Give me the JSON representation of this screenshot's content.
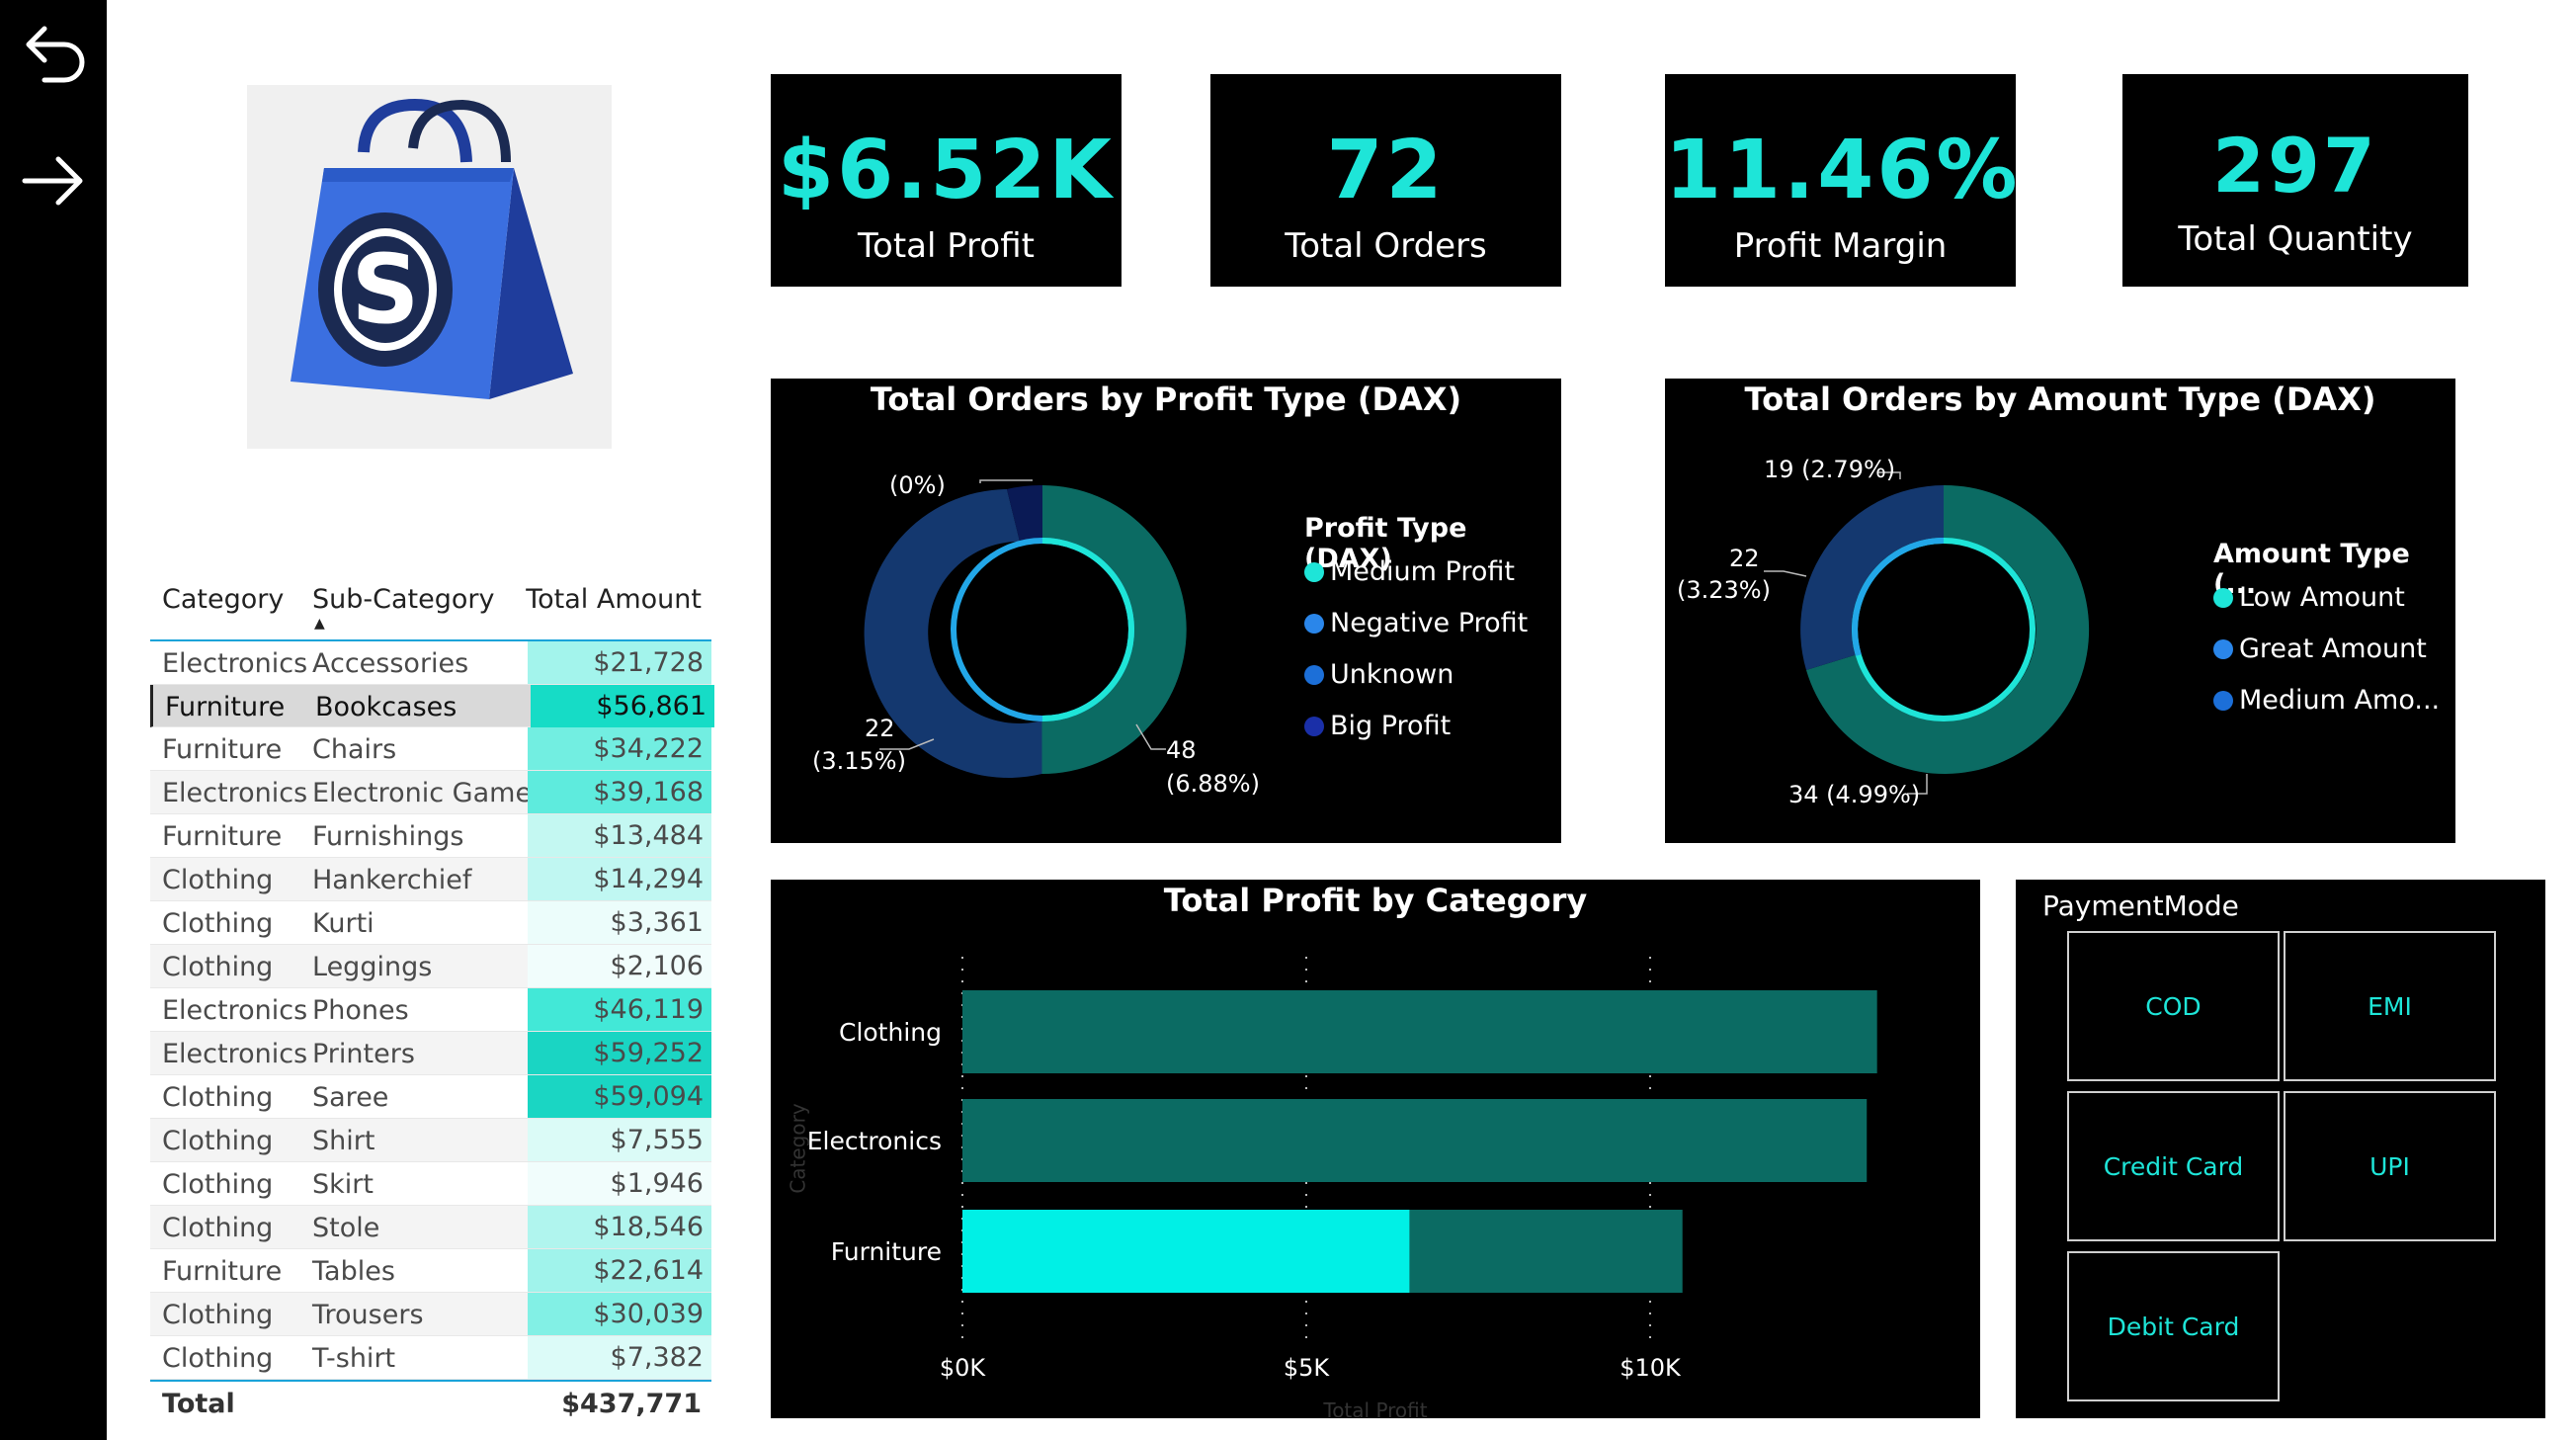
{
  "nav": {
    "back_icon": "back-arrow-icon",
    "forward_icon": "forward-arrow-icon"
  },
  "logo": {
    "letter": "S",
    "colors": {
      "bag": "#3b6fe0",
      "bag_dark": "#1f3d9c",
      "circle": "#1b2a52"
    }
  },
  "kpis": [
    {
      "value": "$6.52K",
      "label": "Total Profit"
    },
    {
      "value": "72",
      "label": "Total Orders"
    },
    {
      "value": "11.46%",
      "label": "Profit Margin"
    },
    {
      "value": "297",
      "label": "Total Quantity"
    }
  ],
  "table": {
    "headers": [
      "Category",
      "Sub-Category",
      "Total Amount"
    ],
    "sort_indicator": "▲",
    "rows": [
      [
        "Electronics",
        "Accessories",
        "$21,728"
      ],
      [
        "Furniture",
        "Bookcases",
        "$56,861"
      ],
      [
        "Furniture",
        "Chairs",
        "$34,222"
      ],
      [
        "Electronics",
        "Electronic Games",
        "$39,168"
      ],
      [
        "Furniture",
        "Furnishings",
        "$13,484"
      ],
      [
        "Clothing",
        "Hankerchief",
        "$14,294"
      ],
      [
        "Clothing",
        "Kurti",
        "$3,361"
      ],
      [
        "Clothing",
        "Leggings",
        "$2,106"
      ],
      [
        "Electronics",
        "Phones",
        "$46,119"
      ],
      [
        "Electronics",
        "Printers",
        "$59,252"
      ],
      [
        "Clothing",
        "Saree",
        "$59,094"
      ],
      [
        "Clothing",
        "Shirt",
        "$7,555"
      ],
      [
        "Clothing",
        "Skirt",
        "$1,946"
      ],
      [
        "Clothing",
        "Stole",
        "$18,546"
      ],
      [
        "Furniture",
        "Tables",
        "$22,614"
      ],
      [
        "Clothing",
        "Trousers",
        "$30,039"
      ],
      [
        "Clothing",
        "T-shirt",
        "$7,382"
      ]
    ],
    "amounts": [
      21728,
      56861,
      34222,
      39168,
      13484,
      14294,
      3361,
      2106,
      46119,
      59252,
      59094,
      7555,
      1946,
      18546,
      22614,
      30039,
      7382
    ],
    "total_label": "Total",
    "total_value": "$437,771",
    "selected_row": 1
  },
  "donut_profit": {
    "title": "Total Orders by Profit Type (DAX)",
    "legend_title": "Profit Type (DAX)",
    "legend": [
      {
        "name": "Medium Profit",
        "color": "#1ee5d8"
      },
      {
        "name": "Negative Profit",
        "color": "#2a86ea"
      },
      {
        "name": "Unknown",
        "color": "#1c6fd8"
      },
      {
        "name": "Big Profit",
        "color": "#1a2fa8"
      }
    ],
    "labels": {
      "a": "(0%)",
      "b1": "22",
      "b2": "(3.15%)",
      "c1": "48",
      "c2": "(6.88%)"
    }
  },
  "donut_amount": {
    "title": "Total Orders by Amount Type (DAX)",
    "legend_title": "Amount Type (...",
    "legend": [
      {
        "name": "Low Amount",
        "color": "#1ee5d8"
      },
      {
        "name": "Great Amount",
        "color": "#2a86ea"
      },
      {
        "name": "Medium Amo...",
        "color": "#1c6fd8"
      }
    ],
    "labels": {
      "a": "19 (2.79%)",
      "b1": "22",
      "b2": "(3.23%)",
      "c": "34 (4.99%)"
    }
  },
  "bar_panel": {
    "title": "Total Profit by Category",
    "xlabel": "Total Profit",
    "ylabel": "Category"
  },
  "chart_data": {
    "type": "bar",
    "orientation": "horizontal",
    "title": "Total Profit by Category",
    "xlabel": "Total Profit",
    "ylabel": "Category",
    "categories": [
      "Clothing",
      "Electronics",
      "Furniture"
    ],
    "series": [
      {
        "values": [
          13300,
          13150,
          10470
        ],
        "color": "#0b6b63"
      }
    ],
    "highlight": {
      "category": "Furniture",
      "value": 6500,
      "color": "#00f0e6"
    },
    "xticks": [
      "$0K",
      "$5K",
      "$10K"
    ],
    "xlim": [
      0,
      14000
    ],
    "grid": true
  },
  "payment": {
    "title": "PaymentMode",
    "options": [
      "COD",
      "EMI",
      "Credit Card",
      "UPI",
      "Debit Card"
    ]
  }
}
